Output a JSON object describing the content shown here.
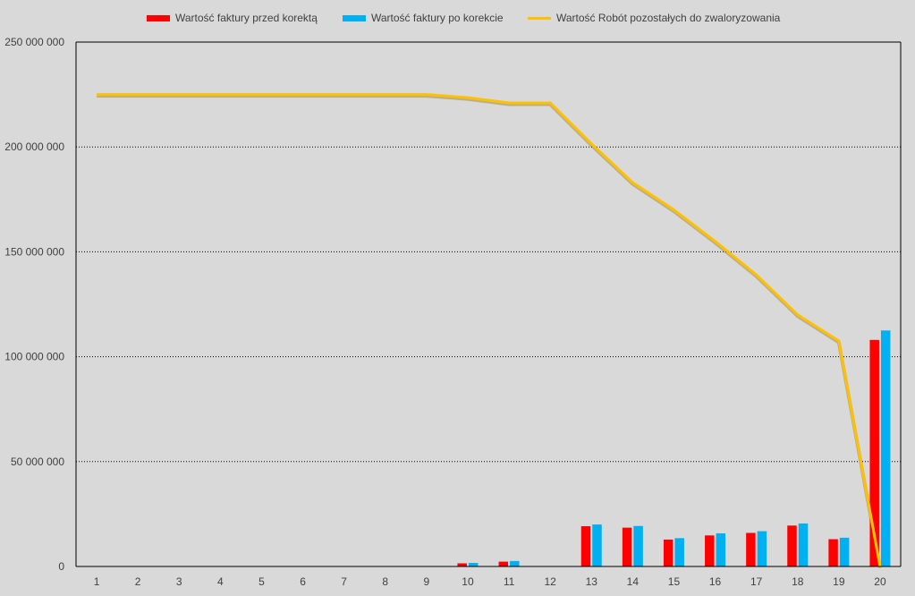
{
  "chart_data": {
    "type": "bar",
    "categories": [
      "1",
      "2",
      "3",
      "4",
      "5",
      "6",
      "7",
      "8",
      "9",
      "10",
      "11",
      "12",
      "13",
      "14",
      "15",
      "16",
      "17",
      "18",
      "19",
      "20"
    ],
    "series": [
      {
        "name": "Wartość faktury przed korektą",
        "kind": "bar",
        "color": "#ff0000",
        "values": [
          0,
          0,
          0,
          0,
          0,
          0,
          0,
          0,
          0,
          1500000,
          2300000,
          0,
          19200000,
          18500000,
          12800000,
          14800000,
          16000000,
          19500000,
          13000000,
          108000000
        ]
      },
      {
        "name": "Wartość faktury po korekcie",
        "kind": "bar",
        "color": "#00b0f0",
        "values": [
          0,
          0,
          0,
          0,
          0,
          0,
          0,
          0,
          0,
          1700000,
          2600000,
          0,
          20000000,
          19300000,
          13500000,
          15800000,
          16800000,
          20500000,
          13700000,
          112500000
        ]
      },
      {
        "name": "Wartość Robót pozostałych do zwaloryzowania",
        "kind": "line",
        "color": "#ffc000",
        "values": [
          225000000,
          225000000,
          225000000,
          225000000,
          225000000,
          225000000,
          225000000,
          225000000,
          225000000,
          223500000,
          221000000,
          221000000,
          201500000,
          183000000,
          170000000,
          155000000,
          139000000,
          120000000,
          107500000,
          0
        ]
      }
    ],
    "ylim": [
      0,
      250000000
    ],
    "yticks": [
      {
        "value": 0,
        "label": "0"
      },
      {
        "value": 50000000,
        "label": "50 000 000"
      },
      {
        "value": 100000000,
        "label": "100 000 000"
      },
      {
        "value": 150000000,
        "label": "150 000 000"
      },
      {
        "value": 200000000,
        "label": "200 000 000"
      },
      {
        "value": 250000000,
        "label": "250 000 000"
      }
    ],
    "grid": "horizontal dotted",
    "legend": "top",
    "title": "",
    "xlabel": "",
    "ylabel": ""
  }
}
